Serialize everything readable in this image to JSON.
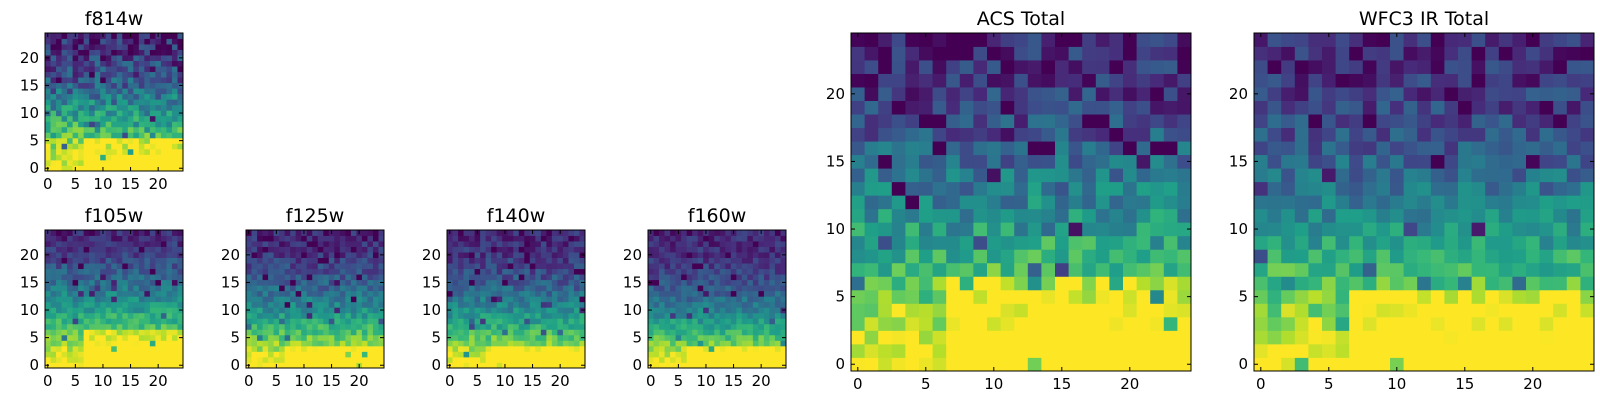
{
  "chart_data": {
    "type": "heatmap",
    "colormap": "viridis",
    "colormap_stops": [
      "#440154",
      "#482878",
      "#3e4989",
      "#31688e",
      "#26828e",
      "#1f9e89",
      "#35b779",
      "#6ece58",
      "#b5de2b",
      "#fde725"
    ],
    "grid_size": 25,
    "panels": [
      {
        "id": "f814w",
        "title": "f814w",
        "xticks": [
          0,
          5,
          10,
          15,
          20
        ],
        "yticks": [
          0,
          5,
          10,
          15,
          20
        ],
        "seed": 11,
        "noise": 0.36,
        "curve": 1.6,
        "bright_frac": 0.1,
        "dark_spots": 0.05
      },
      {
        "id": "f105w",
        "title": "f105w",
        "xticks": [
          0,
          5,
          10,
          15,
          20
        ],
        "yticks": [
          0,
          5,
          10,
          15,
          20
        ],
        "seed": 23,
        "noise": 0.22,
        "curve": 1.4,
        "bright_frac": 0.12,
        "dark_spots": 0.04
      },
      {
        "id": "f125w",
        "title": "f125w",
        "xticks": [
          0,
          5,
          10,
          15,
          20
        ],
        "yticks": [
          0,
          5,
          10,
          15,
          20
        ],
        "seed": 37,
        "noise": 0.22,
        "curve": 1.7,
        "bright_frac": 0.06,
        "dark_spots": 0.07
      },
      {
        "id": "f140w",
        "title": "f140w",
        "xticks": [
          0,
          5,
          10,
          15,
          20
        ],
        "yticks": [
          0,
          5,
          10,
          15,
          20
        ],
        "seed": 41,
        "noise": 0.22,
        "curve": 1.8,
        "bright_frac": 0.06,
        "dark_spots": 0.07
      },
      {
        "id": "f160w",
        "title": "f160w",
        "xticks": [
          0,
          5,
          10,
          15,
          20
        ],
        "yticks": [
          0,
          5,
          10,
          15,
          20
        ],
        "seed": 53,
        "noise": 0.2,
        "curve": 2.0,
        "bright_frac": 0.07,
        "dark_spots": 0.06
      },
      {
        "id": "acs-total",
        "title": "ACS Total",
        "xticks": [
          0,
          5,
          10,
          15,
          20
        ],
        "yticks": [
          0,
          5,
          10,
          15,
          20
        ],
        "seed": 67,
        "noise": 0.32,
        "curve": 1.5,
        "bright_frac": 0.12,
        "dark_spots": 0.05
      },
      {
        "id": "wfc3-ir-total",
        "title": "WFC3 IR Total",
        "xticks": [
          0,
          5,
          10,
          15,
          20
        ],
        "yticks": [
          0,
          5,
          10,
          15,
          20
        ],
        "seed": 79,
        "noise": 0.28,
        "curve": 1.6,
        "bright_frac": 0.1,
        "dark_spots": 0.06
      }
    ]
  }
}
